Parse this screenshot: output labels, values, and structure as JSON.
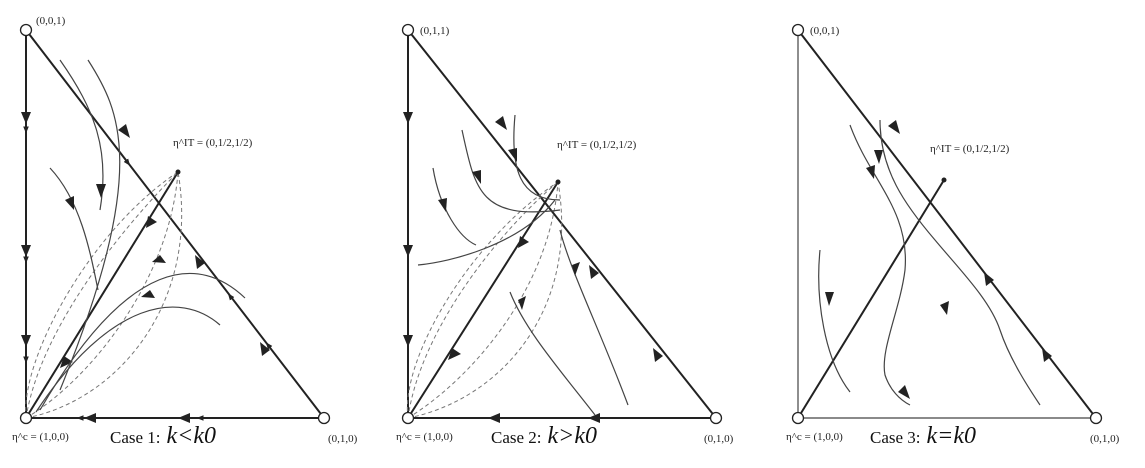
{
  "panels": [
    {
      "id": "case1",
      "top_label": "(0,0,1)",
      "right_label": "(0,1,0)",
      "bottom_label": "η^c = (1,0,0)",
      "mid_label": "η^IT = (0,1/2,1/2)",
      "caption_prefix": "Case 1:",
      "caption_math": "k<k0"
    },
    {
      "id": "case2",
      "top_label": "(0,1,1)",
      "right_label": "(0,1,0)",
      "bottom_label": "η^c = (1,0,0)",
      "mid_label": "η^IT = (0,1/2,1/2)",
      "caption_prefix": "Case 2:",
      "caption_math": "k>k0"
    },
    {
      "id": "case3",
      "top_label": "(0,0,1)",
      "right_label": "(0,1,0)",
      "bottom_label": "η^c = (1,0,0)",
      "mid_label": "η^IT = (0,1/2,1/2)",
      "caption_prefix": "Case 3:",
      "caption_math": "k=k0"
    }
  ],
  "colors": {
    "stroke": "#222222",
    "dashed": "#777777",
    "background": "#ffffff"
  }
}
